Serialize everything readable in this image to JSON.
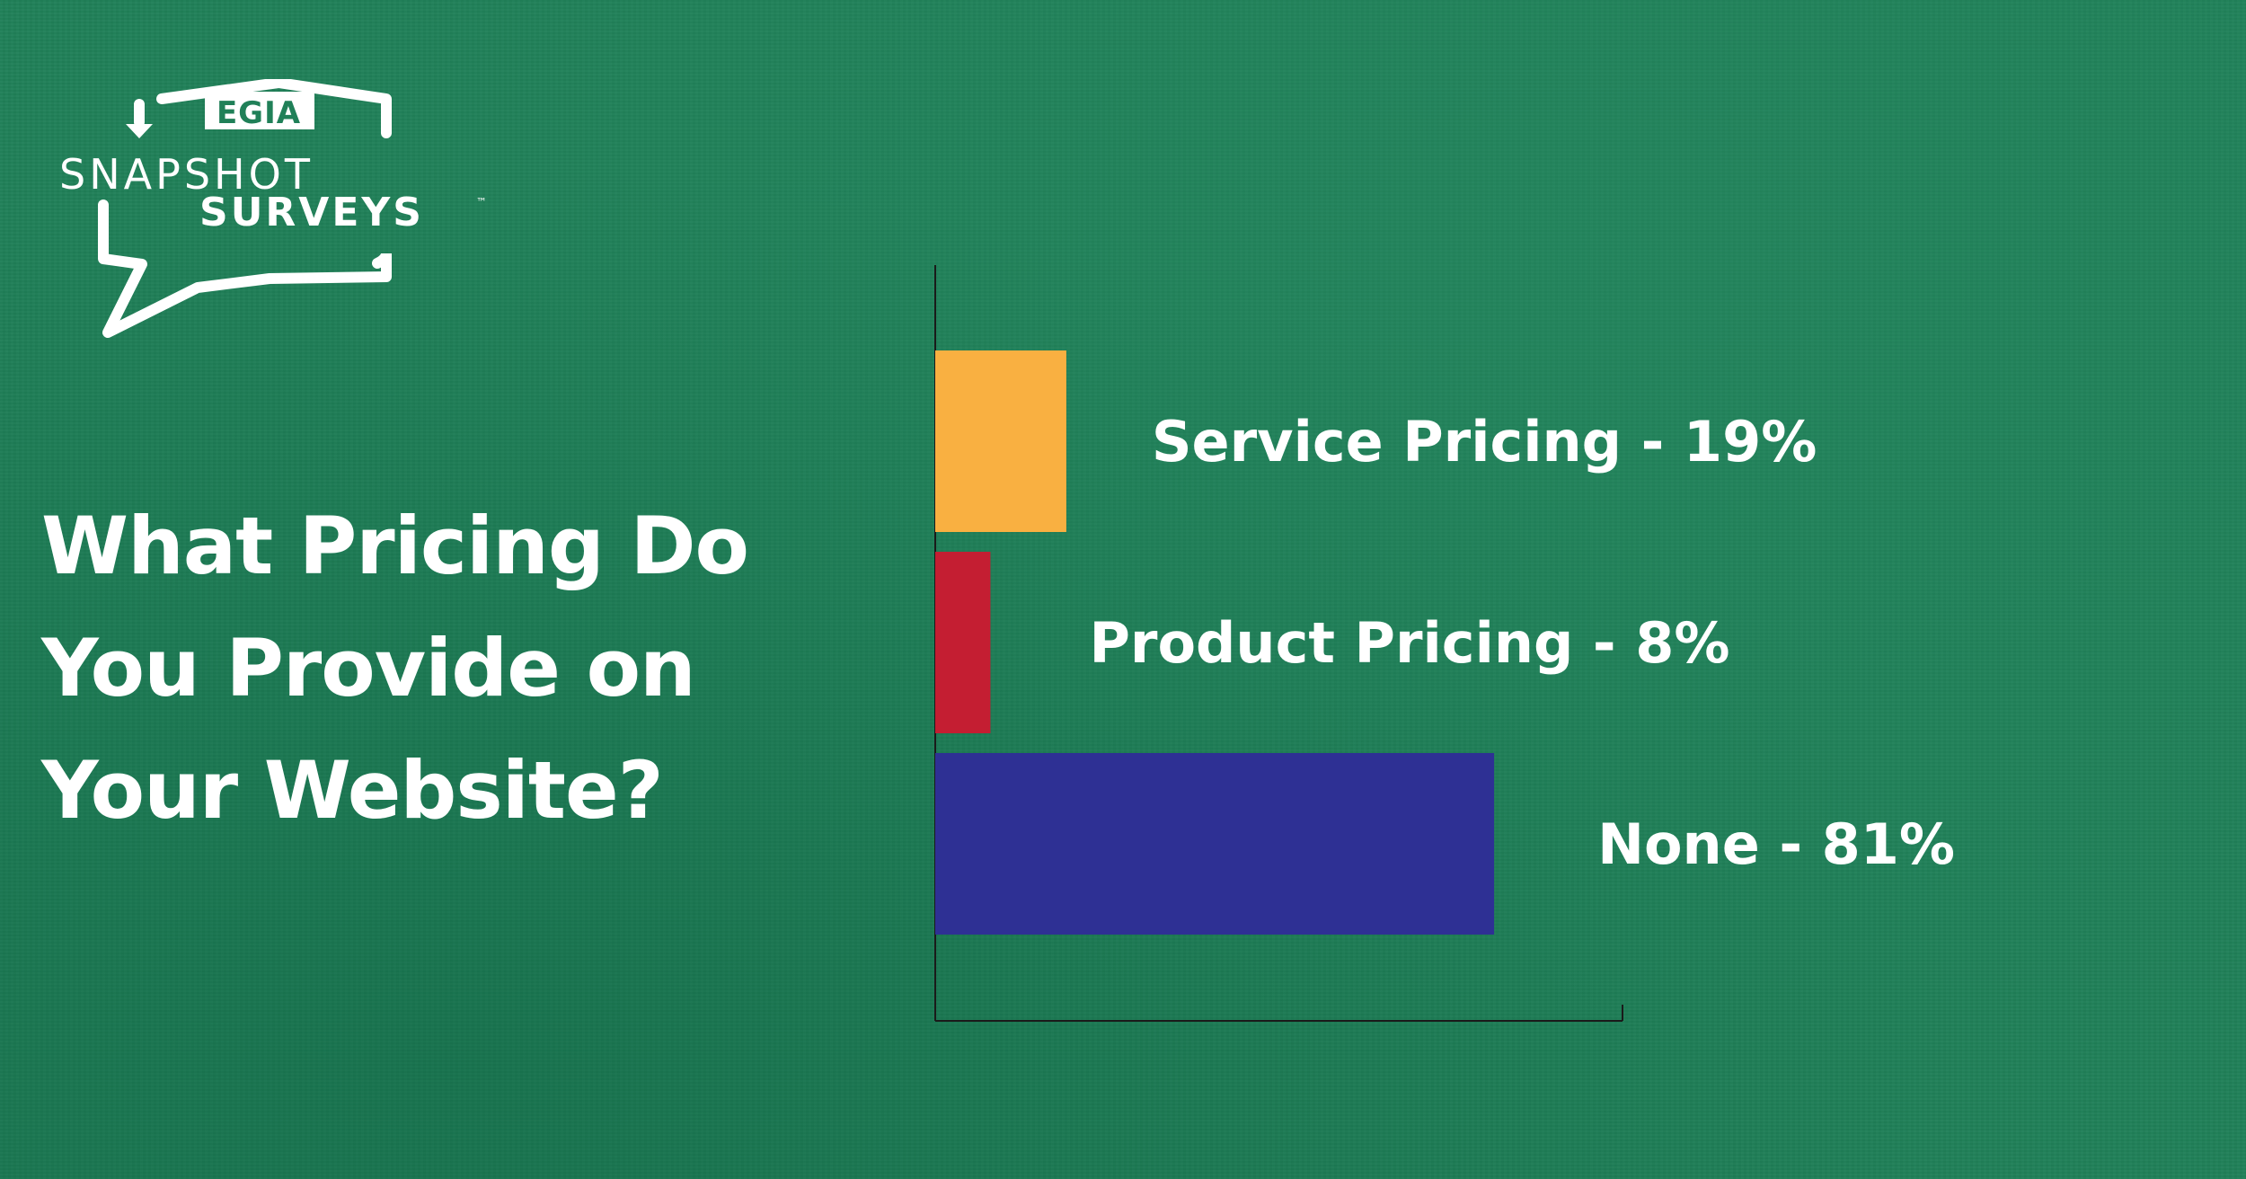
{
  "logo": {
    "top_text": "EGIA",
    "line1": "SNAPSHOT",
    "line2": "SURVEYS",
    "trademark": "™"
  },
  "title": {
    "lines": [
      "What Pricing Do",
      "You Provide on",
      "Your Website?"
    ]
  },
  "colors": {
    "background": "#208058",
    "service": "#F9B041",
    "product": "#C41E32",
    "none": "#2E3094",
    "text": "#FFFFFF",
    "axis": "#1a1a1a"
  },
  "chart_data": {
    "type": "bar",
    "orientation": "horizontal",
    "title": "What Pricing Do You Provide on Your Website?",
    "categories": [
      "Service Pricing",
      "Product Pricing",
      "None"
    ],
    "values": [
      19,
      8,
      81
    ],
    "unit": "%",
    "labels": [
      "Service Pricing - 19%",
      "Product Pricing - 8%",
      "None - 81%"
    ],
    "bar_colors": [
      "#F9B041",
      "#C41E32",
      "#2E3094"
    ],
    "xlim": [
      0,
      100
    ],
    "grid": false,
    "legend": "none",
    "xlabel": "",
    "ylabel": ""
  }
}
